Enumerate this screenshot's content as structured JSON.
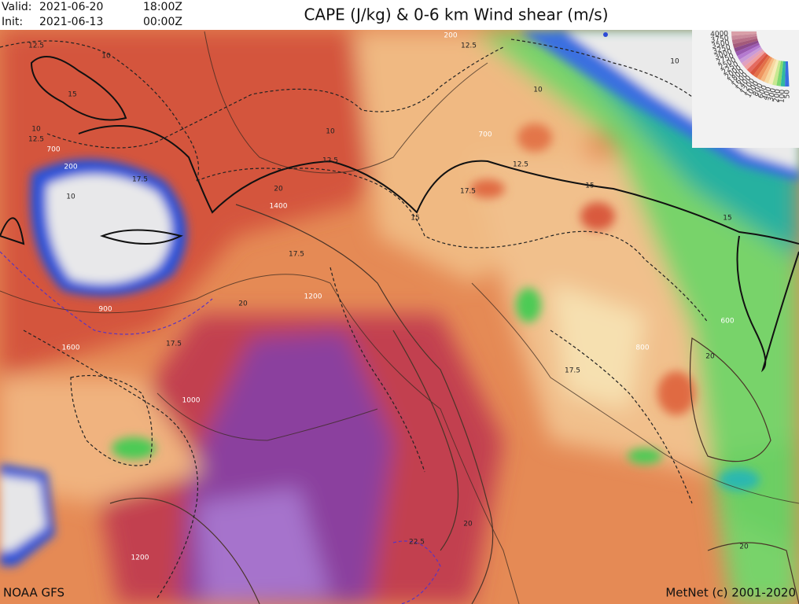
{
  "header": {
    "valid_label": "Valid:",
    "valid_date": "2021-06-20",
    "valid_time": "18:00Z",
    "init_label": "Init:",
    "init_date": "2021-06-13",
    "init_time": "00:00Z",
    "title": "CAPE (J/kg) & 0-6 km Wind shear (m/s)"
  },
  "footer": {
    "source": "NOAA GFS",
    "credit": "MetNet (c) 2001-2020"
  },
  "legend": {
    "labels": [
      "4000",
      "3750",
      "3500",
      "3250",
      "3000",
      "2750",
      "2500",
      "2250",
      "2000",
      "1800",
      "1600",
      "1400",
      "1200",
      "1000",
      "800",
      "600",
      "400",
      "300",
      "200",
      "100",
      "50"
    ]
  },
  "contour_labels": [
    "12.5",
    "10",
    "15",
    "10",
    "12.5",
    "700",
    "200",
    "10",
    "17.5",
    "1400",
    "20",
    "17.5",
    "1200",
    "900",
    "1600",
    "1000",
    "17.5",
    "20",
    "12.5",
    "10",
    "15",
    "17.5",
    "12.5",
    "700",
    "10",
    "15",
    "15",
    "800",
    "600",
    "17.5",
    "20",
    "1200",
    "22.5",
    "20",
    "20",
    "200",
    "12.5",
    "10"
  ]
}
